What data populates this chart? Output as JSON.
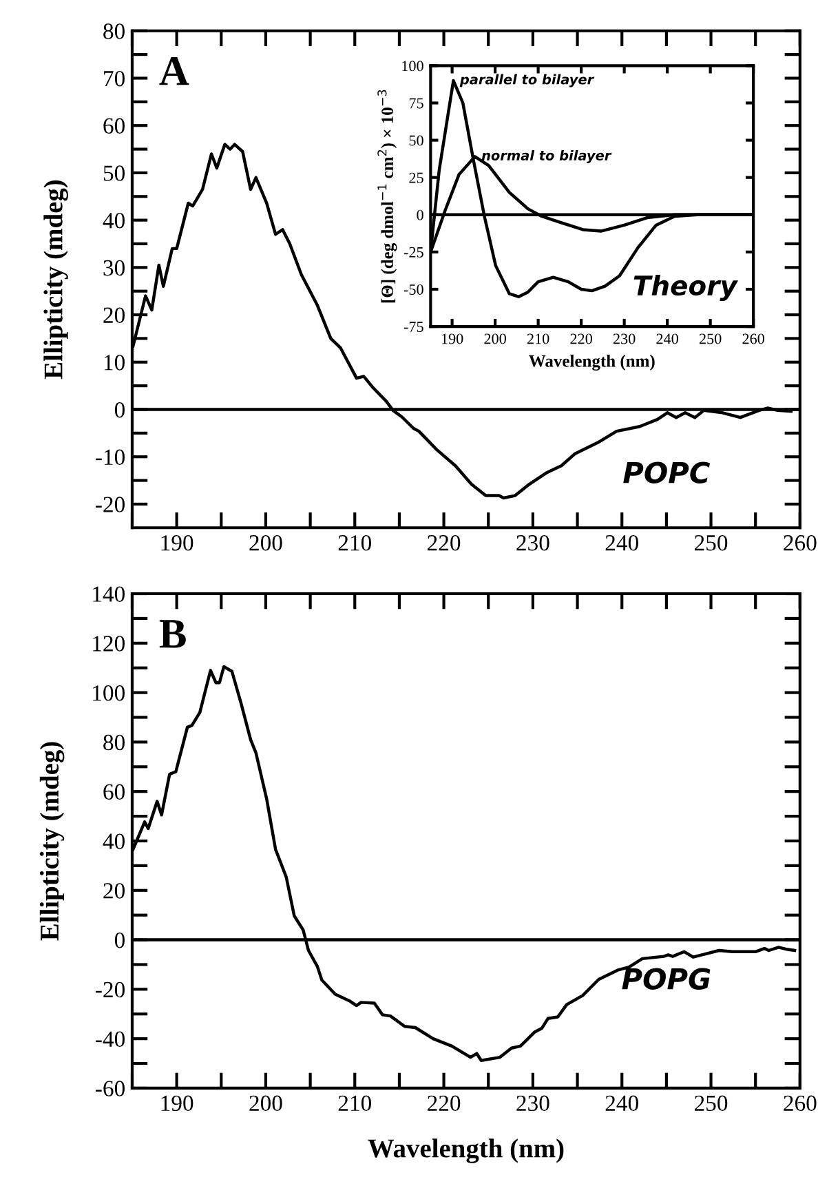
{
  "chart_data": [
    {
      "type": "line",
      "title": "A",
      "ylabel": "Ellipticity (mdeg)",
      "xlim": [
        185,
        260
      ],
      "ylim": [
        -25,
        80
      ],
      "xticks": [
        {
          "value": 185,
          "label": null
        },
        190,
        {
          "value": 195,
          "label": null
        },
        200,
        {
          "value": 205,
          "label": null
        },
        210,
        {
          "value": 215,
          "label": null
        },
        220,
        {
          "value": 225,
          "label": null
        },
        230,
        {
          "value": 235,
          "label": null
        },
        240,
        {
          "value": 245,
          "label": null
        },
        250,
        {
          "value": 255,
          "label": null
        },
        260
      ],
      "yticks": [
        -20,
        {
          "value": -15,
          "label": null
        },
        -10,
        {
          "value": -5,
          "label": null
        },
        0,
        {
          "value": 5,
          "label": null
        },
        10,
        {
          "value": 15,
          "label": null
        },
        20,
        {
          "value": 25,
          "label": null
        },
        30,
        {
          "value": 35,
          "label": null
        },
        40,
        {
          "value": 45,
          "label": null
        },
        50,
        {
          "value": 55,
          "label": null
        },
        60,
        {
          "value": 65,
          "label": null
        },
        70,
        {
          "value": 75,
          "label": null
        },
        80
      ],
      "grid": false,
      "legend": false,
      "marker": "none",
      "line_style": "solid",
      "ref_lines": [
        {
          "axis": "y",
          "value": 0,
          "label": null,
          "color": "#000000"
        }
      ],
      "annotations": [
        "POPC"
      ],
      "series": [
        {
          "color": "#000000",
          "x": [
            185.1,
            186.5,
            187.2,
            188,
            188.5,
            189.5,
            190,
            191.3,
            191.8,
            192.9,
            193.9,
            194.5,
            195.4,
            196,
            196.5,
            197.4,
            198.3,
            198.9,
            200.1,
            201.1,
            201.9,
            202.7,
            204,
            205.8,
            207.3,
            208.4,
            210.2,
            211,
            212,
            213.5,
            214.3,
            215.3,
            216.6,
            217.2,
            219.2,
            221.3,
            223.1,
            224.7,
            226.2,
            226.7,
            228,
            229.6,
            231.6,
            233.2,
            234.7,
            237.3,
            239.4,
            242,
            244,
            245.1,
            246.1,
            247.1,
            248.2,
            249.2,
            251.3,
            253.3,
            255.4,
            256.4,
            257.5,
            259
          ],
          "values": [
            13.4,
            24,
            21,
            30.5,
            26,
            34,
            34,
            43.6,
            43,
            46.5,
            54,
            51,
            56,
            55,
            56,
            54.5,
            46.5,
            49,
            43.6,
            37,
            38,
            35,
            28.5,
            22,
            15,
            13,
            6.6,
            7,
            4.7,
            1.8,
            -0.2,
            -1.6,
            -4,
            -4.6,
            -8.5,
            -11.9,
            -15.8,
            -18.2,
            -18.2,
            -18.7,
            -18.2,
            -15.8,
            -13.3,
            -11.9,
            -9.4,
            -7,
            -4.6,
            -3.6,
            -2.1,
            -0.7,
            -1.7,
            -0.7,
            -1.7,
            -0.2,
            -0.7,
            -1.7,
            -0.2,
            0.3,
            -0.2,
            -0.4
          ]
        }
      ]
    },
    {
      "type": "line",
      "xlabel": "Wavelength (nm)",
      "ylabel": "[Θ] (deg dmol$^{−1}$ cm$^{2}$) × 10$^{−3}$",
      "xlim": [
        185,
        260
      ],
      "ylim": [
        -75,
        100
      ],
      "xticks": [
        190,
        200,
        210,
        220,
        230,
        240,
        250,
        260
      ],
      "yticks": [
        -75,
        -50,
        -25,
        0,
        25,
        50,
        75,
        100
      ],
      "grid": false,
      "marker": "none",
      "line_style": "solid",
      "ref_lines": [
        {
          "axis": "y",
          "value": 0,
          "label": null,
          "color": "#000000"
        }
      ],
      "annotations": [
        "Theory"
      ],
      "series": [
        {
          "name": "parallel to bilayer",
          "color": "#000000",
          "x": [
            185,
            187,
            190.3,
            192.5,
            194.8,
            197.5,
            200.1,
            203.3,
            205.5,
            207.6,
            210,
            213.5,
            217,
            220,
            222.5,
            225.5,
            228.9,
            233.2,
            237.4,
            241.7,
            247,
            260
          ],
          "values": [
            -25,
            30,
            90,
            75,
            39,
            -1,
            -34,
            -53,
            -55,
            -52,
            -45,
            -42,
            -45,
            -50,
            -51,
            -48,
            -41,
            -22,
            -7,
            -1,
            0,
            0
          ]
        },
        {
          "name": "normal to bilayer",
          "color": "#000000",
          "x": [
            185,
            188.4,
            191.6,
            195.3,
            198.5,
            203.3,
            207.6,
            210.8,
            215,
            220.4,
            224.6,
            230,
            235.3,
            241.7,
            260
          ],
          "values": [
            -25,
            3,
            27,
            39,
            33,
            15,
            4,
            -1,
            -5,
            -10,
            -11,
            -7,
            -2,
            0,
            0
          ]
        }
      ]
    },
    {
      "type": "line",
      "title": "B",
      "xlabel": "Wavelength (nm)",
      "ylabel": "Ellipticity (mdeg)",
      "xlim": [
        185,
        260
      ],
      "ylim": [
        -60,
        140
      ],
      "xticks": [
        {
          "value": 185,
          "label": null
        },
        190,
        {
          "value": 195,
          "label": null
        },
        200,
        {
          "value": 205,
          "label": null
        },
        210,
        {
          "value": 215,
          "label": null
        },
        220,
        {
          "value": 225,
          "label": null
        },
        230,
        {
          "value": 235,
          "label": null
        },
        240,
        {
          "value": 245,
          "label": null
        },
        250,
        {
          "value": 255,
          "label": null
        },
        260
      ],
      "yticks": [
        -60,
        {
          "value": -50,
          "label": null
        },
        -40,
        {
          "value": -30,
          "label": null
        },
        -20,
        {
          "value": -10,
          "label": null
        },
        0,
        {
          "value": 10,
          "label": null
        },
        20,
        {
          "value": 30,
          "label": null
        },
        40,
        {
          "value": 50,
          "label": null
        },
        60,
        {
          "value": 70,
          "label": null
        },
        80,
        {
          "value": 90,
          "label": null
        },
        100,
        {
          "value": 110,
          "label": null
        },
        120,
        {
          "value": 130,
          "label": null
        },
        140
      ],
      "grid": false,
      "legend": false,
      "marker": "none",
      "line_style": "solid",
      "ref_lines": [
        {
          "axis": "y",
          "value": 0,
          "label": null,
          "color": "#000000"
        }
      ],
      "annotations": [
        "POPG"
      ],
      "series": [
        {
          "color": "#000000",
          "x": [
            185.1,
            186.4,
            186.8,
            187.8,
            188.3,
            189.2,
            189.9,
            191.2,
            191.7,
            192.6,
            193.8,
            194.4,
            194.8,
            195.3,
            196.2,
            197.2,
            198.3,
            198.9,
            200.1,
            201.1,
            202.3,
            203.2,
            204.2,
            204.8,
            205.8,
            206.3,
            207.8,
            209.4,
            210.2,
            210.7,
            212.2,
            213.1,
            214,
            215.6,
            216.8,
            218.8,
            220.9,
            223,
            223.7,
            224.2,
            226.3,
            227.6,
            228.6,
            230.2,
            231,
            231.7,
            232.8,
            233.8,
            235.6,
            237.4,
            239.5,
            240.8,
            242.3,
            244.7,
            245.2,
            245.7,
            247,
            248,
            249.3,
            250.9,
            252.4,
            255,
            256,
            256.5,
            257.6,
            258.6,
            259.4
          ],
          "values": [
            36.6,
            47.7,
            45,
            56,
            50.5,
            67,
            68,
            86,
            86.7,
            92,
            109,
            104,
            104,
            110.5,
            108.6,
            96,
            81,
            75.6,
            57,
            36.6,
            25.4,
            9.7,
            4,
            -4.3,
            -10.8,
            -16.3,
            -22,
            -24.7,
            -26.6,
            -25.3,
            -25.6,
            -30.3,
            -30.8,
            -35,
            -35.5,
            -40,
            -43,
            -47.5,
            -46,
            -48.8,
            -47.5,
            -43.8,
            -43,
            -37.3,
            -35.8,
            -31.8,
            -31.2,
            -26.2,
            -22.5,
            -16,
            -12.3,
            -11,
            -7.6,
            -6.7,
            -6.1,
            -6.7,
            -4.8,
            -7,
            -5.8,
            -4.3,
            -4.8,
            -4.8,
            -3.5,
            -4.3,
            -3,
            -3.9,
            -4.3
          ]
        }
      ]
    }
  ]
}
